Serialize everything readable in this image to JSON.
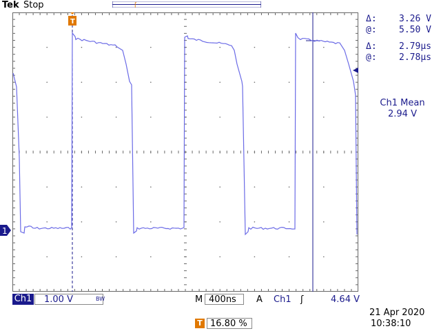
{
  "header": {
    "brand": "Tek",
    "run_state": "Stop"
  },
  "cursors": {
    "voltage_delta_symbol": "Δ:",
    "voltage_delta": "3.26 V",
    "voltage_at_symbol": "@:",
    "voltage_at": "5.50 V",
    "time_delta_symbol": "Δ:",
    "time_delta": "2.79µs",
    "time_at_symbol": "@:",
    "time_at": "2.78µs"
  },
  "measurement": {
    "title": "Ch1 Mean",
    "value": "2.94 V"
  },
  "status_bar": {
    "channel_tag": "Ch1",
    "channel_scale": "1.00 V",
    "bandwidth_icon": "BW",
    "m_label": "M",
    "timebase": "400ns",
    "a_label": "A",
    "trigger_source": "Ch1",
    "trigger_slope": "ʃ",
    "trigger_level": "4.64 V",
    "trigger_position_icon": "T",
    "trigger_position": "16.80 %"
  },
  "clock": {
    "date": "21 Apr  2020",
    "time": "10:38:10"
  },
  "markers": {
    "ground_marker": "1",
    "trigger_marker": "T"
  },
  "colors": {
    "trace": "#6a6ae6",
    "cursor": "#1a1a8c",
    "trigger": "#e07800",
    "graticule": "#666666"
  }
}
